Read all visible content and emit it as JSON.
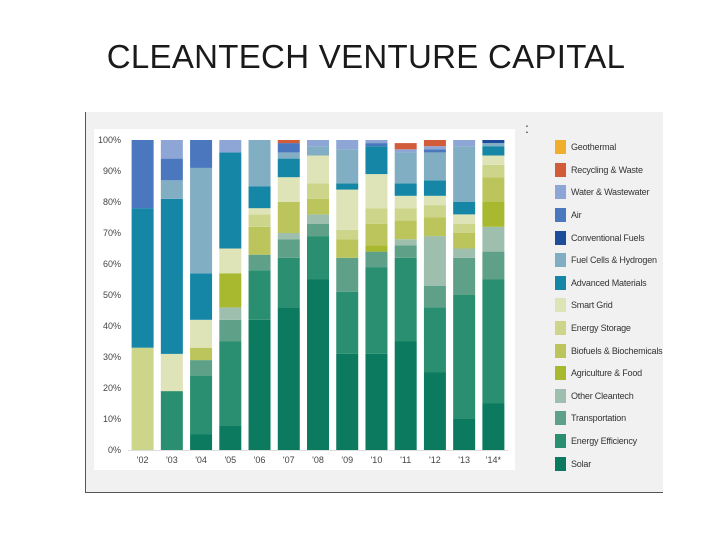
{
  "slide": {
    "title": "CLEANTECH VENTURE CAPITAL"
  },
  "legend_colon": ":",
  "chart_data": {
    "type": "bar",
    "stacked": true,
    "title": "CLEANTECH VENTURE CAPITAL",
    "xlabel": "",
    "ylabel": "",
    "ylim": [
      0,
      100
    ],
    "yticks": [
      0,
      10,
      20,
      30,
      40,
      50,
      60,
      70,
      80,
      90,
      100
    ],
    "ytick_labels": [
      "0%",
      "10%",
      "20%",
      "30%",
      "40%",
      "50%",
      "60%",
      "70%",
      "80%",
      "90%",
      "100%"
    ],
    "categories": [
      "'02",
      "'03",
      "'04",
      "'05",
      "'06",
      "'07",
      "'08",
      "'09",
      "'10",
      "'11",
      "'12",
      "'13",
      "'14*"
    ],
    "series": [
      {
        "name": "Solar",
        "color": "#0b7a5e",
        "values": [
          0,
          0,
          5,
          8,
          42,
          46,
          55,
          31,
          31,
          35,
          25,
          10,
          15
        ]
      },
      {
        "name": "Energy Efficiency",
        "color": "#2a8f70",
        "values": [
          0,
          19,
          19,
          27,
          16,
          16,
          14,
          20,
          28,
          27,
          21,
          40,
          40
        ]
      },
      {
        "name": "Transportation",
        "color": "#5ea088",
        "values": [
          0,
          0,
          5,
          7,
          5,
          6,
          4,
          11,
          5,
          4,
          7,
          12,
          9
        ]
      },
      {
        "name": "Other Cleantech",
        "color": "#9ebfae",
        "values": [
          0,
          0,
          0,
          4,
          0,
          2,
          3,
          0,
          0,
          2,
          16,
          3,
          8
        ]
      },
      {
        "name": "Agriculture & Food",
        "color": "#a8b82f",
        "values": [
          0,
          0,
          0,
          11,
          0,
          0,
          0,
          0,
          2,
          0,
          0,
          0,
          8
        ]
      },
      {
        "name": "Biofuels & Biochemicals",
        "color": "#bcc55b",
        "values": [
          0,
          0,
          4,
          0,
          9,
          10,
          5,
          6,
          7,
          6,
          6,
          5,
          8
        ]
      },
      {
        "name": "Energy Storage",
        "color": "#cdd58b",
        "values": [
          33,
          0,
          0,
          0,
          4,
          0,
          5,
          3,
          5,
          4,
          4,
          3,
          4
        ]
      },
      {
        "name": "Smart Grid",
        "color": "#dfe3b8",
        "values": [
          0,
          12,
          9,
          8,
          2,
          8,
          9,
          13,
          11,
          4,
          3,
          3,
          3
        ]
      },
      {
        "name": "Advanced Materials",
        "color": "#1586a6",
        "values": [
          45,
          50,
          15,
          31,
          7,
          6,
          0,
          2,
          9,
          4,
          5,
          4,
          3
        ]
      },
      {
        "name": "Fuel Cells & Hydrogen",
        "color": "#82aec4",
        "values": [
          0,
          6,
          34,
          0,
          15,
          2,
          3,
          11,
          0,
          10,
          9,
          18,
          1
        ]
      },
      {
        "name": "Conventional Fuels",
        "color": "#1d4d9a",
        "values": [
          0,
          0,
          0,
          0,
          0,
          0,
          0,
          0,
          0,
          0,
          0,
          0,
          1
        ]
      },
      {
        "name": "Air",
        "color": "#4a77bd",
        "values": [
          22,
          7,
          9,
          0,
          0,
          3,
          0,
          0,
          1,
          0,
          1,
          0,
          0
        ]
      },
      {
        "name": "Water & Wastewater",
        "color": "#8da6d6",
        "values": [
          0,
          6,
          0,
          4,
          0,
          0,
          2,
          3,
          1,
          1,
          1,
          2,
          0
        ]
      },
      {
        "name": "Recycling & Waste",
        "color": "#d25c3a",
        "values": [
          0,
          0,
          0,
          0,
          0,
          1,
          0,
          0,
          0,
          2,
          2,
          0,
          0
        ]
      },
      {
        "name": "Geothermal",
        "color": "#f0ae2c",
        "values": [
          0,
          0,
          0,
          0,
          0,
          0,
          0,
          0,
          0,
          0,
          0,
          0,
          0
        ]
      }
    ],
    "legend": [
      "Geothermal",
      "Recycling & Waste",
      "Water & Wastewater",
      "Air",
      "Conventional Fuels",
      "Fuel Cells & Hydrogen",
      "Advanced Materials",
      "Smart Grid",
      "Energy Storage",
      "Biofuels & Biochemicals",
      "Agriculture & Food",
      "Other Cleantech",
      "Transportation",
      "Energy Efficiency",
      "Solar"
    ],
    "legend_position": "right",
    "grid": false
  }
}
